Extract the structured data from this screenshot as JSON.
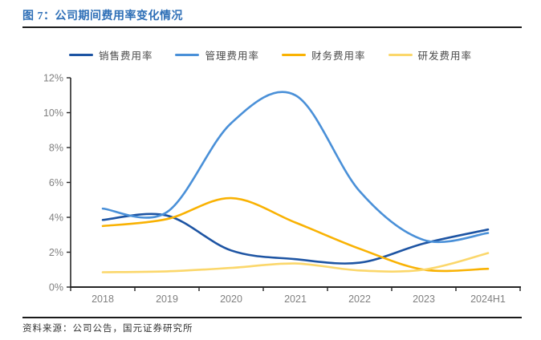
{
  "header": {
    "title": "图 7：公司期间费用率变化情况"
  },
  "footer": {
    "source": "资料来源：公司公告，国元证券研究所"
  },
  "colors": {
    "title_blue": "#2e6fb7",
    "rule": "#1b1b1b",
    "axis": "#262626",
    "tick_label": "#808080",
    "legend_text": "#4a4a4a"
  },
  "chart_data": {
    "type": "line",
    "line_style": "smooth",
    "title": "公司期间费用率变化情况",
    "categories": [
      "2018",
      "2019",
      "2020",
      "2021",
      "2022",
      "2023",
      "2024H1"
    ],
    "series": [
      {
        "key": "sales",
        "name": "销售费用率",
        "color": "#1d54a3",
        "values": [
          3.85,
          4.1,
          2.1,
          1.6,
          1.4,
          2.5,
          3.3
        ]
      },
      {
        "key": "management",
        "name": "管理费用率",
        "color": "#4a90d8",
        "values": [
          4.5,
          4.3,
          9.4,
          11.0,
          5.5,
          2.7,
          3.1
        ]
      },
      {
        "key": "finance",
        "name": "财务费用率",
        "color": "#f9b203",
        "values": [
          3.5,
          3.9,
          5.1,
          3.7,
          2.2,
          1.0,
          1.05
        ]
      },
      {
        "key": "rnd",
        "name": "研发费用率",
        "color": "#fbd76b",
        "values": [
          0.85,
          0.9,
          1.1,
          1.35,
          0.95,
          1.0,
          1.95
        ]
      }
    ],
    "ylim": [
      0,
      12
    ],
    "ytick_step": 2,
    "ytick_labels": [
      "0%",
      "2%",
      "4%",
      "6%",
      "8%",
      "10%",
      "12%"
    ],
    "xlabel": "",
    "ylabel": "",
    "grid": false,
    "legend_position": "top"
  }
}
